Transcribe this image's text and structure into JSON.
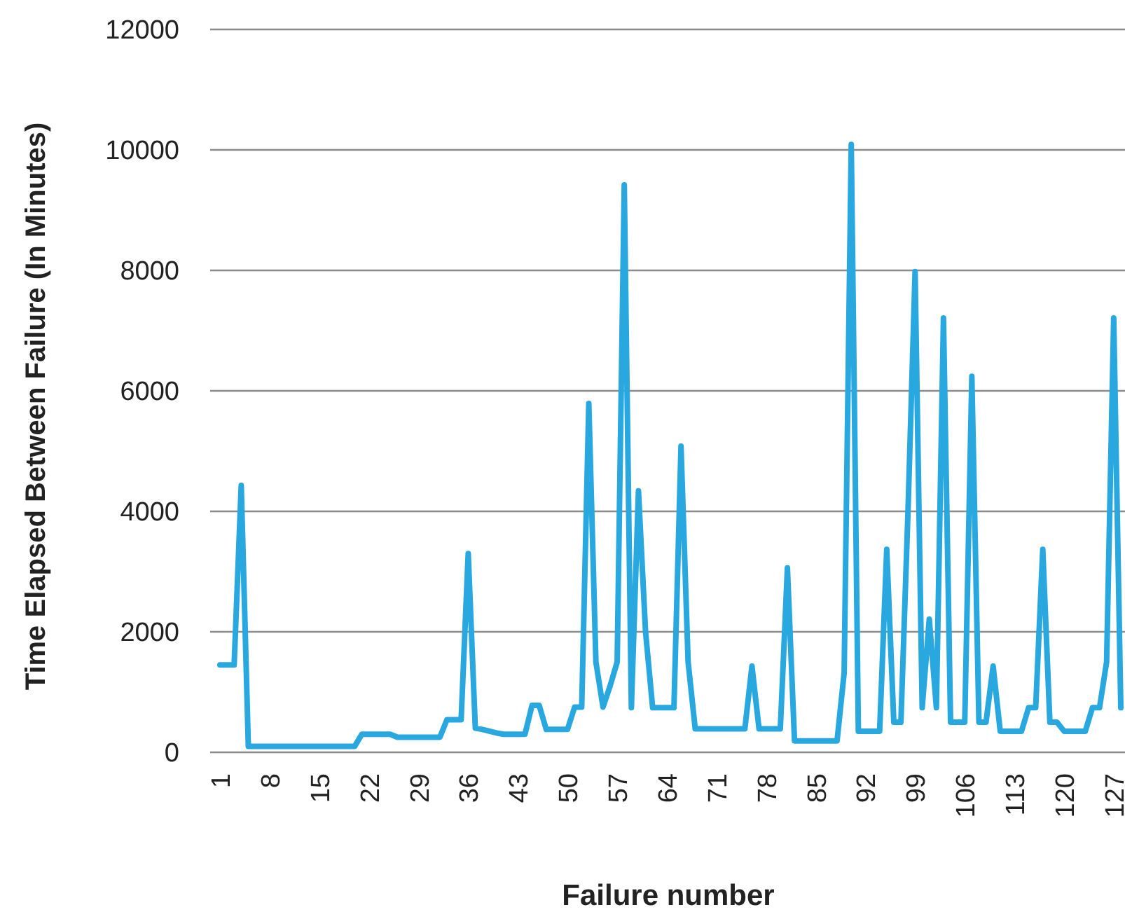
{
  "chart_data": {
    "type": "line",
    "xlabel": "Failure number",
    "ylabel": "Time Elapsed Between Failure (In Minutes)",
    "categories": [
      "1",
      null,
      null,
      null,
      null,
      null,
      null,
      "8",
      null,
      null,
      null,
      null,
      null,
      null,
      "15",
      null,
      null,
      null,
      null,
      null,
      null,
      "22",
      null,
      null,
      null,
      null,
      null,
      null,
      "29",
      null,
      null,
      null,
      null,
      null,
      null,
      "36",
      null,
      null,
      null,
      null,
      null,
      null,
      "43",
      null,
      null,
      null,
      null,
      null,
      null,
      "50",
      null,
      null,
      null,
      null,
      null,
      null,
      "57",
      null,
      null,
      null,
      null,
      null,
      null,
      "64",
      null,
      null,
      null,
      null,
      null,
      null,
      "71",
      null,
      null,
      null,
      null,
      null,
      null,
      "78",
      null,
      null,
      null,
      null,
      null,
      null,
      "85",
      null,
      null,
      null,
      null,
      null,
      null,
      "92",
      null,
      null,
      null,
      null,
      null,
      null,
      "99",
      null,
      null,
      null,
      null,
      null,
      null,
      "106",
      null,
      null,
      null,
      null,
      null,
      null,
      "113",
      null,
      null,
      null,
      null,
      null,
      null,
      "120",
      null,
      null,
      null,
      null,
      null,
      null,
      "127",
      null
    ],
    "series": [
      {
        "color": "#29a8e0",
        "values": [
          1450,
          1450,
          1450,
          4430,
          100,
          100,
          100,
          100,
          100,
          100,
          100,
          100,
          100,
          100,
          100,
          100,
          100,
          100,
          100,
          100,
          300,
          300,
          300,
          300,
          300,
          250,
          250,
          250,
          250,
          250,
          250,
          250,
          540,
          540,
          540,
          3300,
          400,
          380,
          350,
          320,
          300,
          300,
          300,
          300,
          780,
          780,
          380,
          380,
          380,
          380,
          750,
          750,
          5790,
          1500,
          750,
          1100,
          1500,
          9420,
          740,
          4340,
          2000,
          740,
          740,
          740,
          740,
          5080,
          1500,
          390,
          390,
          390,
          390,
          390,
          390,
          390,
          390,
          1430,
          390,
          390,
          390,
          390,
          3060,
          190,
          190,
          190,
          190,
          190,
          190,
          190,
          1320,
          10090,
          350,
          350,
          350,
          350,
          3370,
          500,
          500,
          4000,
          7980,
          740,
          2210,
          740,
          7210,
          500,
          500,
          500,
          6240,
          500,
          500,
          1430,
          350,
          350,
          350,
          350,
          740,
          740,
          3370,
          500,
          500,
          350,
          350,
          350,
          350,
          740,
          740,
          1500,
          7210,
          740
        ]
      }
    ],
    "ylim": [
      0,
      12000
    ],
    "yticks": [
      0,
      2000,
      4000,
      6000,
      8000,
      10000,
      12000
    ],
    "grid": "y",
    "marker": "none",
    "line_style": "solid"
  }
}
